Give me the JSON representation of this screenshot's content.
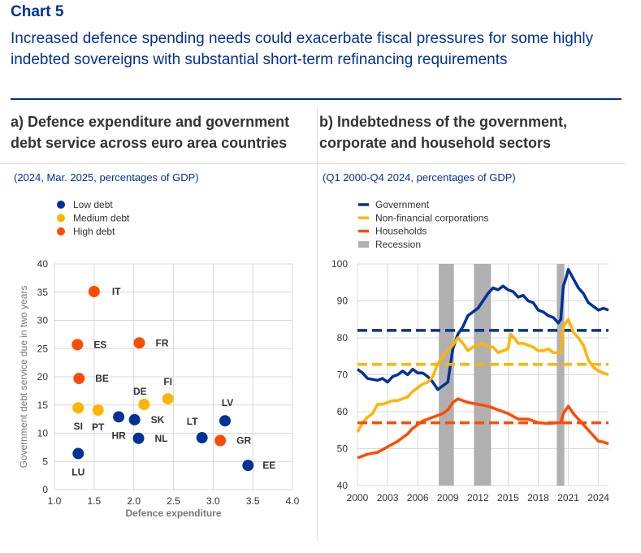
{
  "header": {
    "chart_no": "Chart 5",
    "subtitle": "Increased defence spending needs could exacerbate fiscal pressures for some highly indebted sovereigns with substantial short-term refinancing requirements"
  },
  "colors": {
    "low": "#003299",
    "medium": "#FFB400",
    "high": "#FF4B00",
    "government": "#003299",
    "nfc": "#FFB400",
    "households": "#FF4B00",
    "recession": "#B0B0B0",
    "grid": "#D9D9D9"
  },
  "chart_data": [
    {
      "type": "scatter",
      "title": "a) Defence expenditure and government debt service across euro area countries",
      "caption": "(2024, Mar. 2025, percentages of GDP)",
      "xlabel": "Defence expenditure",
      "ylabel": "Government debt service due in two years",
      "xlim": [
        1.0,
        4.0
      ],
      "ylim": [
        0,
        40
      ],
      "xticks": [
        "1.0",
        "1.5",
        "2.0",
        "2.5",
        "3.0",
        "3.5",
        "4.0"
      ],
      "yticks": [
        "0",
        "5",
        "10",
        "15",
        "20",
        "25",
        "30",
        "35",
        "40"
      ],
      "legend": [
        {
          "key": "low",
          "label": "Low debt"
        },
        {
          "key": "medium",
          "label": "Medium debt"
        },
        {
          "key": "high",
          "label": "High debt"
        }
      ],
      "points": [
        {
          "label": "IT",
          "x": 1.5,
          "y": 35.1,
          "group": "high"
        },
        {
          "label": "ES",
          "x": 1.29,
          "y": 25.7,
          "group": "high"
        },
        {
          "label": "FR",
          "x": 2.07,
          "y": 26.0,
          "group": "high"
        },
        {
          "label": "BE",
          "x": 1.31,
          "y": 19.7,
          "group": "high"
        },
        {
          "label": "DE",
          "x": 2.13,
          "y": 15.1,
          "group": "medium"
        },
        {
          "label": "FI",
          "x": 2.43,
          "y": 16.1,
          "group": "medium"
        },
        {
          "label": "SI",
          "x": 1.3,
          "y": 14.5,
          "group": "medium"
        },
        {
          "label": "PT",
          "x": 1.55,
          "y": 14.1,
          "group": "medium"
        },
        {
          "label": "HR",
          "x": 1.81,
          "y": 12.9,
          "group": "low"
        },
        {
          "label": "SK",
          "x": 2.01,
          "y": 12.4,
          "group": "low"
        },
        {
          "label": "NL",
          "x": 2.06,
          "y": 9.1,
          "group": "low"
        },
        {
          "label": "LT",
          "x": 2.86,
          "y": 9.2,
          "group": "low"
        },
        {
          "label": "LV",
          "x": 3.15,
          "y": 12.2,
          "group": "low"
        },
        {
          "label": "GR",
          "x": 3.09,
          "y": 8.7,
          "group": "high"
        },
        {
          "label": "LU",
          "x": 1.3,
          "y": 6.4,
          "group": "low"
        },
        {
          "label": "EE",
          "x": 3.44,
          "y": 4.3,
          "group": "low"
        }
      ]
    },
    {
      "type": "line",
      "title": "b) Indebtedness of the government, corporate and household sectors",
      "caption": "(Q1 2000-Q4 2024, percentages of GDP)",
      "xlim": [
        2000,
        2025
      ],
      "ylim": [
        40,
        100
      ],
      "xticks": [
        "2000",
        "2003",
        "2006",
        "2009",
        "2012",
        "2015",
        "2018",
        "2021",
        "2024"
      ],
      "yticks": [
        "40",
        "50",
        "60",
        "70",
        "80",
        "90",
        "100"
      ],
      "legend": [
        {
          "key": "government",
          "label": "Government",
          "kind": "dash"
        },
        {
          "key": "nfc",
          "label": "Non-financial corporations",
          "kind": "dash"
        },
        {
          "key": "households",
          "label": "Households",
          "kind": "dash"
        },
        {
          "key": "recession",
          "label": "Recession",
          "kind": "bar"
        }
      ],
      "recessions": [
        [
          2008.1,
          2009.6
        ],
        [
          2011.6,
          2013.3
        ],
        [
          2019.85,
          2020.6
        ]
      ],
      "series": [
        {
          "key": "government",
          "name": "Government",
          "average": 82,
          "points": [
            [
              2000,
              71.5
            ],
            [
              2000.5,
              70.5
            ],
            [
              2001,
              69
            ],
            [
              2002,
              68.5
            ],
            [
              2002.5,
              69
            ],
            [
              2003,
              68
            ],
            [
              2003.5,
              69.5
            ],
            [
              2004,
              70
            ],
            [
              2004.5,
              71
            ],
            [
              2005,
              70
            ],
            [
              2005.5,
              71.5
            ],
            [
              2006,
              70.5
            ],
            [
              2006.5,
              70.5
            ],
            [
              2007,
              69.5
            ],
            [
              2007.5,
              68
            ],
            [
              2008,
              66
            ],
            [
              2008.5,
              67
            ],
            [
              2009,
              68
            ],
            [
              2009.5,
              77
            ],
            [
              2010,
              81
            ],
            [
              2010.5,
              83
            ],
            [
              2011,
              86
            ],
            [
              2011.5,
              87
            ],
            [
              2012,
              88
            ],
            [
              2012.5,
              90
            ],
            [
              2013,
              92
            ],
            [
              2013.5,
              93.5
            ],
            [
              2014,
              93
            ],
            [
              2014.5,
              94
            ],
            [
              2015,
              93
            ],
            [
              2015.5,
              92.5
            ],
            [
              2016,
              91
            ],
            [
              2016.5,
              91.5
            ],
            [
              2017,
              90
            ],
            [
              2017.5,
              89.5
            ],
            [
              2018,
              87.5
            ],
            [
              2018.5,
              87
            ],
            [
              2019,
              86
            ],
            [
              2019.5,
              85.5
            ],
            [
              2020,
              84
            ],
            [
              2020.25,
              85
            ],
            [
              2020.5,
              94
            ],
            [
              2020.75,
              96
            ],
            [
              2021,
              98.5
            ],
            [
              2021.5,
              96
            ],
            [
              2022,
              93.5
            ],
            [
              2022.5,
              92
            ],
            [
              2023,
              89.5
            ],
            [
              2023.5,
              88.5
            ],
            [
              2024,
              87.5
            ],
            [
              2024.5,
              88
            ],
            [
              2025,
              87.5
            ]
          ]
        },
        {
          "key": "nfc",
          "name": "Non-financial corporations",
          "average": 72.8,
          "points": [
            [
              2000,
              54.5
            ],
            [
              2000.5,
              57
            ],
            [
              2001,
              58.5
            ],
            [
              2001.5,
              59.5
            ],
            [
              2002,
              62
            ],
            [
              2002.5,
              62
            ],
            [
              2003,
              62.5
            ],
            [
              2003.5,
              63
            ],
            [
              2004,
              63
            ],
            [
              2004.5,
              63.5
            ],
            [
              2005,
              64
            ],
            [
              2005.5,
              65.5
            ],
            [
              2006,
              66.5
            ],
            [
              2006.5,
              67.5
            ],
            [
              2007,
              68
            ],
            [
              2007.5,
              69.5
            ],
            [
              2008,
              73
            ],
            [
              2008.5,
              75
            ],
            [
              2009,
              76.5
            ],
            [
              2009.5,
              78
            ],
            [
              2010,
              80
            ],
            [
              2010.5,
              78.5
            ],
            [
              2011,
              76.5
            ],
            [
              2011.5,
              77.5
            ],
            [
              2012,
              78
            ],
            [
              2012.5,
              78.5
            ],
            [
              2013,
              77.5
            ],
            [
              2013.5,
              77.5
            ],
            [
              2014,
              76
            ],
            [
              2014.5,
              76.5
            ],
            [
              2015,
              77
            ],
            [
              2015.25,
              81
            ],
            [
              2015.75,
              79.5
            ],
            [
              2016,
              78.5
            ],
            [
              2016.5,
              78.5
            ],
            [
              2017,
              78
            ],
            [
              2017.5,
              77.5
            ],
            [
              2018,
              76.5
            ],
            [
              2018.5,
              76.5
            ],
            [
              2019,
              77
            ],
            [
              2019.5,
              76
            ],
            [
              2020,
              76
            ],
            [
              2020.25,
              76
            ],
            [
              2020.5,
              83
            ],
            [
              2021,
              85
            ],
            [
              2021.5,
              81.5
            ],
            [
              2022,
              80
            ],
            [
              2022.5,
              78
            ],
            [
              2023,
              74
            ],
            [
              2023.5,
              72
            ],
            [
              2024,
              71
            ],
            [
              2024.5,
              70.5
            ],
            [
              2025,
              70
            ]
          ]
        },
        {
          "key": "households",
          "name": "Households",
          "average": 57,
          "points": [
            [
              2000,
              47.5
            ],
            [
              2000.5,
              48
            ],
            [
              2001,
              48.5
            ],
            [
              2002,
              49
            ],
            [
              2003,
              50.5
            ],
            [
              2004,
              52
            ],
            [
              2005,
              54
            ],
            [
              2005.5,
              55.5
            ],
            [
              2006,
              56.5
            ],
            [
              2006.5,
              57.5
            ],
            [
              2007,
              58
            ],
            [
              2007.5,
              58.5
            ],
            [
              2008,
              59
            ],
            [
              2008.5,
              59.5
            ],
            [
              2009,
              60.5
            ],
            [
              2009.5,
              62.5
            ],
            [
              2010,
              63.5
            ],
            [
              2010.5,
              63
            ],
            [
              2011,
              62.5
            ],
            [
              2012,
              62
            ],
            [
              2013,
              61.5
            ],
            [
              2013.5,
              61
            ],
            [
              2014,
              60.5
            ],
            [
              2015,
              59.5
            ],
            [
              2016,
              58
            ],
            [
              2017,
              58
            ],
            [
              2017.5,
              57.5
            ],
            [
              2018,
              57
            ],
            [
              2019,
              56.8
            ],
            [
              2020,
              57
            ],
            [
              2020.25,
              57
            ],
            [
              2020.5,
              59.5
            ],
            [
              2021,
              61.5
            ],
            [
              2021.5,
              59.5
            ],
            [
              2022,
              58
            ],
            [
              2022.5,
              56.5
            ],
            [
              2023,
              55
            ],
            [
              2023.5,
              53.5
            ],
            [
              2024,
              52
            ],
            [
              2024.5,
              51.8
            ],
            [
              2025,
              51.3
            ]
          ]
        }
      ]
    }
  ]
}
